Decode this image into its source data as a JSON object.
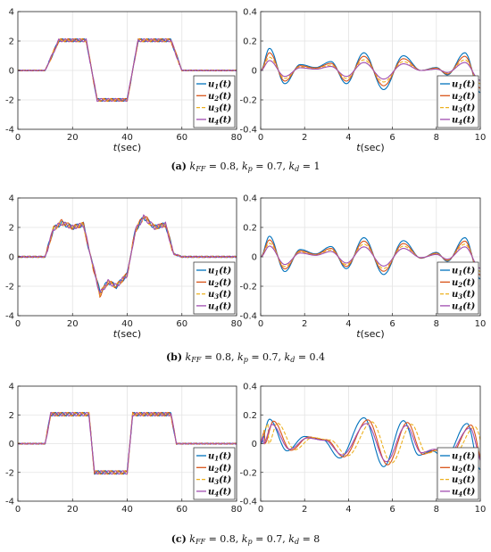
{
  "chart_data": [
    {
      "panel": "a-left",
      "type": "line",
      "xlim": [
        0,
        80
      ],
      "ylim": [
        -4,
        4
      ],
      "xticks": [
        0,
        20,
        40,
        60,
        80
      ],
      "yticks": [
        -4,
        -2,
        0,
        2,
        4
      ],
      "xlabel": "t(sec)",
      "ylabel": "",
      "grid": true,
      "legend_position": "bottom-right",
      "kind": "step",
      "steps": [
        [
          10,
          2.05
        ],
        [
          25,
          -2.0
        ],
        [
          40,
          2.05
        ],
        [
          56,
          0
        ]
      ],
      "ripple": 0.1,
      "series": [
        {
          "name": "u1(t)",
          "color": "#0072BD",
          "values": [
            [
              0,
              0
            ],
            [
              10,
              0
            ],
            [
              15,
              2.05
            ],
            [
              25,
              2.05
            ],
            [
              29,
              -2.0
            ],
            [
              40,
              -2.0
            ],
            [
              44,
              2.05
            ],
            [
              56,
              2.05
            ],
            [
              60,
              0
            ],
            [
              80,
              0
            ]
          ]
        },
        {
          "name": "u2(t)",
          "color": "#D95319",
          "values": [
            [
              0,
              0
            ],
            [
              10,
              0
            ],
            [
              15,
              2.05
            ],
            [
              25,
              2.05
            ],
            [
              29,
              -2.0
            ],
            [
              40,
              -2.0
            ],
            [
              44,
              2.05
            ],
            [
              56,
              2.05
            ],
            [
              60,
              0
            ],
            [
              80,
              0
            ]
          ]
        },
        {
          "name": "u3(t)",
          "color": "#EDB120",
          "values": [
            [
              0,
              0
            ],
            [
              10,
              0
            ],
            [
              15,
              2.05
            ],
            [
              25,
              2.05
            ],
            [
              29,
              -2.0
            ],
            [
              40,
              -2.0
            ],
            [
              44,
              2.05
            ],
            [
              56,
              2.05
            ],
            [
              60,
              0
            ],
            [
              80,
              0
            ]
          ]
        },
        {
          "name": "u4(t)",
          "color": "#A04DB0",
          "values": [
            [
              0,
              0
            ],
            [
              10,
              0
            ],
            [
              15,
              2.05
            ],
            [
              25,
              2.05
            ],
            [
              29,
              -2.0
            ],
            [
              40,
              -2.0
            ],
            [
              44,
              2.05
            ],
            [
              56,
              2.05
            ],
            [
              60,
              0
            ],
            [
              80,
              0
            ]
          ]
        }
      ]
    },
    {
      "panel": "a-right",
      "type": "line",
      "xlim": [
        0,
        10
      ],
      "ylim": [
        -0.4,
        0.4
      ],
      "xticks": [
        0,
        2,
        4,
        6,
        8,
        10
      ],
      "yticks": [
        -0.4,
        -0.2,
        0,
        0.2,
        0.4
      ],
      "xlabel": "t(sec)",
      "ylabel": "",
      "grid": true,
      "legend_position": "bottom-right",
      "kind": "wave",
      "peaks": [
        [
          0.4,
          0.15
        ],
        [
          1.1,
          -0.09
        ],
        [
          1.8,
          0.04
        ],
        [
          2.5,
          0.02
        ],
        [
          3.2,
          0.06
        ],
        [
          3.9,
          -0.09
        ],
        [
          4.7,
          0.12
        ],
        [
          5.6,
          -0.13
        ],
        [
          6.5,
          0.1
        ],
        [
          7.3,
          0.0
        ],
        [
          8.0,
          0.02
        ],
        [
          8.5,
          -0.03
        ],
        [
          9.3,
          0.12
        ],
        [
          10,
          -0.15
        ]
      ],
      "series": [
        {
          "name": "u1(t)",
          "color": "#0072BD",
          "amp": 1.0,
          "lag": 0
        },
        {
          "name": "u2(t)",
          "color": "#D95319",
          "amp": 0.8,
          "lag": 0
        },
        {
          "name": "u3(t)",
          "color": "#EDB120",
          "amp": 0.6,
          "lag": 0
        },
        {
          "name": "u4(t)",
          "color": "#A04DB0",
          "amp": 0.45,
          "lag": 0
        }
      ]
    },
    {
      "panel": "b-left",
      "type": "line",
      "xlim": [
        0,
        80
      ],
      "ylim": [
        -4,
        4
      ],
      "xticks": [
        0,
        20,
        40,
        60,
        80
      ],
      "yticks": [
        -4,
        -2,
        0,
        2,
        4
      ],
      "xlabel": "t(sec)",
      "ylabel": "",
      "grid": true,
      "legend_position": "bottom-right",
      "kind": "step",
      "ripple": 0.15,
      "series": [
        {
          "name": "u1(t)",
          "color": "#0072BD",
          "values": [
            [
              0,
              0
            ],
            [
              10,
              0
            ],
            [
              13,
              1.9
            ],
            [
              16,
              2.3
            ],
            [
              20,
              2.0
            ],
            [
              24,
              2.2
            ],
            [
              26,
              0.5
            ],
            [
              30,
              -2.4
            ],
            [
              33,
              -1.7
            ],
            [
              36,
              -2.0
            ],
            [
              40,
              -1.2
            ],
            [
              43,
              1.8
            ],
            [
              46,
              2.7
            ],
            [
              50,
              2.0
            ],
            [
              54,
              2.2
            ],
            [
              57,
              0.2
            ],
            [
              60,
              0
            ],
            [
              80,
              0
            ]
          ]
        },
        {
          "name": "u2(t)",
          "color": "#D95319",
          "values": [
            [
              0,
              0
            ],
            [
              10,
              0
            ],
            [
              13,
              1.9
            ],
            [
              16,
              2.4
            ],
            [
              20,
              2.0
            ],
            [
              24,
              2.2
            ],
            [
              26,
              0.5
            ],
            [
              30,
              -2.6
            ],
            [
              33,
              -1.7
            ],
            [
              36,
              -2.0
            ],
            [
              40,
              -1.2
            ],
            [
              43,
              1.8
            ],
            [
              46,
              2.8
            ],
            [
              50,
              2.0
            ],
            [
              54,
              2.2
            ],
            [
              57,
              0.2
            ],
            [
              60,
              0
            ],
            [
              80,
              0
            ]
          ]
        },
        {
          "name": "u3(t)",
          "color": "#EDB120",
          "values": [
            [
              0,
              0
            ],
            [
              10,
              0
            ],
            [
              13,
              1.9
            ],
            [
              16,
              2.3
            ],
            [
              20,
              2.0
            ],
            [
              24,
              2.2
            ],
            [
              26,
              0.5
            ],
            [
              30,
              -2.5
            ],
            [
              33,
              -1.7
            ],
            [
              36,
              -2.0
            ],
            [
              40,
              -1.2
            ],
            [
              43,
              1.8
            ],
            [
              46,
              2.7
            ],
            [
              50,
              2.0
            ],
            [
              54,
              2.2
            ],
            [
              57,
              0.2
            ],
            [
              60,
              0
            ],
            [
              80,
              0
            ]
          ]
        },
        {
          "name": "u4(t)",
          "color": "#A04DB0",
          "values": [
            [
              0,
              0
            ],
            [
              10,
              0
            ],
            [
              13,
              1.9
            ],
            [
              16,
              2.3
            ],
            [
              20,
              2.0
            ],
            [
              24,
              2.2
            ],
            [
              26,
              0.5
            ],
            [
              30,
              -2.5
            ],
            [
              33,
              -1.7
            ],
            [
              36,
              -2.0
            ],
            [
              40,
              -1.2
            ],
            [
              43,
              1.8
            ],
            [
              46,
              2.7
            ],
            [
              50,
              2.0
            ],
            [
              54,
              2.2
            ],
            [
              57,
              0.2
            ],
            [
              60,
              0
            ],
            [
              80,
              0
            ]
          ]
        }
      ]
    },
    {
      "panel": "b-right",
      "type": "line",
      "xlim": [
        0,
        10
      ],
      "ylim": [
        -0.4,
        0.4
      ],
      "xticks": [
        0,
        2,
        4,
        6,
        8,
        10
      ],
      "yticks": [
        -0.4,
        -0.2,
        0,
        0.2,
        0.4
      ],
      "xlabel": "t(sec)",
      "ylabel": "",
      "grid": true,
      "legend_position": "bottom-right",
      "kind": "wave",
      "peaks": [
        [
          0.4,
          0.14
        ],
        [
          1.1,
          -0.1
        ],
        [
          1.8,
          0.05
        ],
        [
          2.5,
          0.02
        ],
        [
          3.2,
          0.07
        ],
        [
          3.9,
          -0.08
        ],
        [
          4.7,
          0.13
        ],
        [
          5.6,
          -0.12
        ],
        [
          6.5,
          0.11
        ],
        [
          7.3,
          -0.01
        ],
        [
          8.0,
          0.03
        ],
        [
          8.5,
          -0.03
        ],
        [
          9.3,
          0.13
        ],
        [
          10,
          -0.15
        ]
      ],
      "series": [
        {
          "name": "u1(t)",
          "color": "#0072BD",
          "amp": 1.0,
          "lag": 0
        },
        {
          "name": "u2(t)",
          "color": "#D95319",
          "amp": 0.82,
          "lag": 0
        },
        {
          "name": "u3(t)",
          "color": "#EDB120",
          "amp": 0.66,
          "lag": 0
        },
        {
          "name": "u4(t)",
          "color": "#A04DB0",
          "amp": 0.52,
          "lag": 0
        }
      ]
    },
    {
      "panel": "c-left",
      "type": "line",
      "xlim": [
        0,
        80
      ],
      "ylim": [
        -4,
        4
      ],
      "xticks": [
        0,
        20,
        40,
        60,
        80
      ],
      "yticks": [
        -4,
        -2,
        0,
        2,
        4
      ],
      "xlabel": "",
      "ylabel": "",
      "grid": true,
      "legend_position": "bottom-right",
      "kind": "step",
      "ripple": 0.12,
      "series": [
        {
          "name": "u1(t)",
          "color": "#0072BD",
          "values": [
            [
              0,
              0
            ],
            [
              10,
              0
            ],
            [
              12,
              2.05
            ],
            [
              26,
              2.05
            ],
            [
              28,
              -2.0
            ],
            [
              40,
              -2.0
            ],
            [
              42,
              2.05
            ],
            [
              56,
              2.05
            ],
            [
              58,
              0
            ],
            [
              80,
              0
            ]
          ]
        },
        {
          "name": "u2(t)",
          "color": "#D95319",
          "values": [
            [
              0,
              0
            ],
            [
              10,
              0
            ],
            [
              12,
              2.05
            ],
            [
              26,
              2.05
            ],
            [
              28,
              -2.0
            ],
            [
              40,
              -2.0
            ],
            [
              42,
              2.05
            ],
            [
              56,
              2.05
            ],
            [
              58,
              0
            ],
            [
              80,
              0
            ]
          ]
        },
        {
          "name": "u3(t)",
          "color": "#EDB120",
          "values": [
            [
              0,
              0
            ],
            [
              10,
              0
            ],
            [
              12,
              2.05
            ],
            [
              26,
              2.05
            ],
            [
              28,
              -2.0
            ],
            [
              40,
              -2.0
            ],
            [
              42,
              2.05
            ],
            [
              56,
              2.05
            ],
            [
              58,
              0
            ],
            [
              80,
              0
            ]
          ]
        },
        {
          "name": "u4(t)",
          "color": "#A04DB0",
          "values": [
            [
              0,
              0
            ],
            [
              10,
              0
            ],
            [
              12,
              2.05
            ],
            [
              26,
              2.05
            ],
            [
              28,
              -2.0
            ],
            [
              40,
              -2.0
            ],
            [
              42,
              2.05
            ],
            [
              56,
              2.05
            ],
            [
              58,
              0
            ],
            [
              80,
              0
            ]
          ]
        }
      ]
    },
    {
      "panel": "c-right",
      "type": "line",
      "xlim": [
        0,
        10
      ],
      "ylim": [
        -0.4,
        0.4
      ],
      "xticks": [
        0,
        2,
        4,
        6,
        8,
        10
      ],
      "yticks": [
        -0.4,
        -0.2,
        0,
        0.2,
        0.4
      ],
      "xlabel": "",
      "ylabel": "",
      "grid": true,
      "legend_position": "bottom-right",
      "kind": "wave",
      "peaks": [
        [
          0.4,
          0.17
        ],
        [
          1.2,
          -0.05
        ],
        [
          2.0,
          0.05
        ],
        [
          2.8,
          0.03
        ],
        [
          3.6,
          -0.1
        ],
        [
          4.7,
          0.18
        ],
        [
          5.6,
          -0.16
        ],
        [
          6.5,
          0.16
        ],
        [
          7.2,
          -0.08
        ],
        [
          7.8,
          -0.05
        ],
        [
          8.4,
          -0.1
        ],
        [
          9.4,
          0.14
        ],
        [
          10,
          -0.18
        ]
      ],
      "series": [
        {
          "name": "u1(t)",
          "color": "#0072BD",
          "amp": 1.0,
          "lag": 0
        },
        {
          "name": "u2(t)",
          "color": "#D95319",
          "amp": 0.92,
          "lag": 0.18
        },
        {
          "name": "u3(t)",
          "color": "#EDB120",
          "amp": 0.84,
          "lag": 0.36
        },
        {
          "name": "u4(t)",
          "color": "#A04DB0",
          "amp": 0.78,
          "lag": 0.12
        }
      ]
    }
  ],
  "captions": [
    {
      "letter": "(a)",
      "text": "k",
      "sub1": "FF",
      "mid1": " = 0.8, k",
      "sub2": "p",
      "mid2": " = 0.7, k",
      "sub3": "d",
      "tail": " = 1"
    },
    {
      "letter": "(b)",
      "text": "k",
      "sub1": "FF",
      "mid1": " = 0.8, k",
      "sub2": "p",
      "mid2": " = 0.7, k",
      "sub3": "d",
      "tail": " = 0.4"
    },
    {
      "letter": "(c)",
      "text": "k",
      "sub1": "FF",
      "mid1": " = 0.8, k",
      "sub2": "p",
      "mid2": " = 0.7, k",
      "sub3": "d",
      "tail": " = 8"
    }
  ]
}
